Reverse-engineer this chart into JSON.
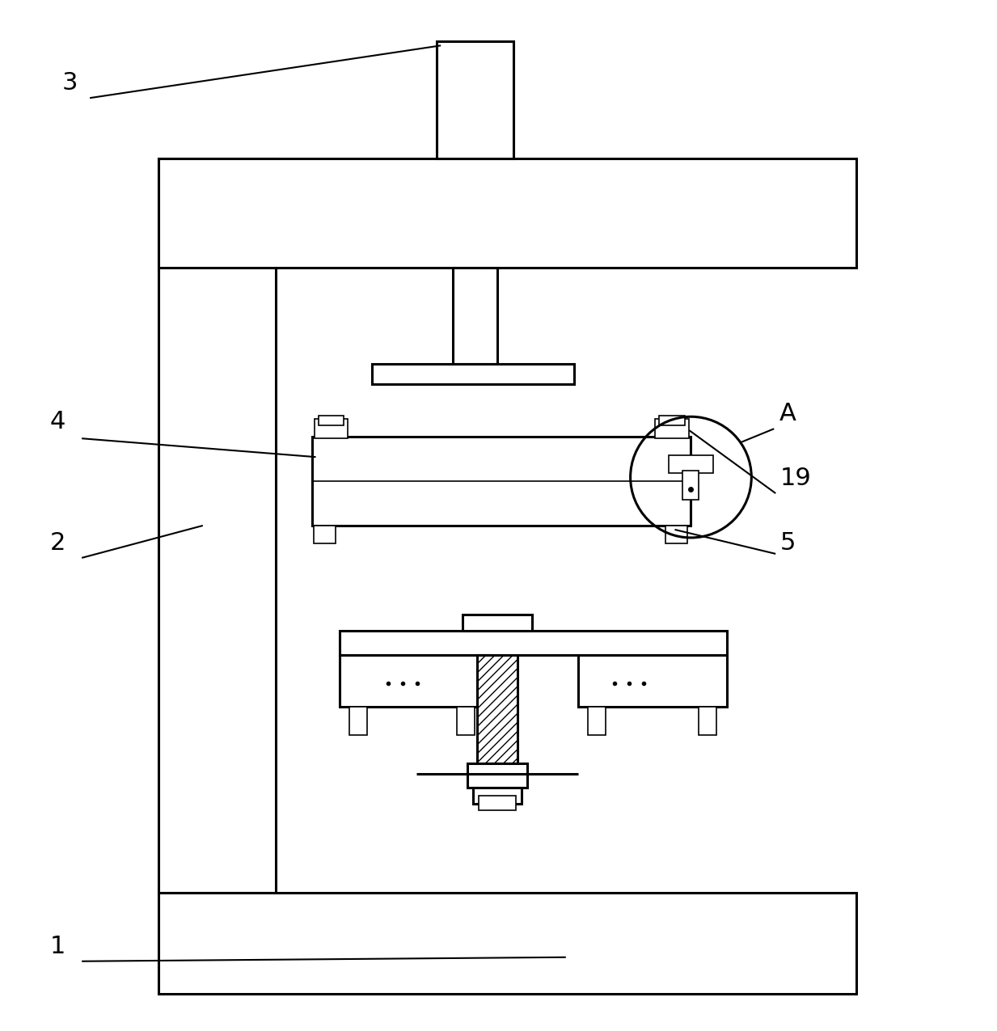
{
  "bg_color": "#ffffff",
  "line_color": "#000000",
  "lw": 2.2,
  "thin_lw": 1.2,
  "fig_width": 12.33,
  "fig_height": 12.75
}
